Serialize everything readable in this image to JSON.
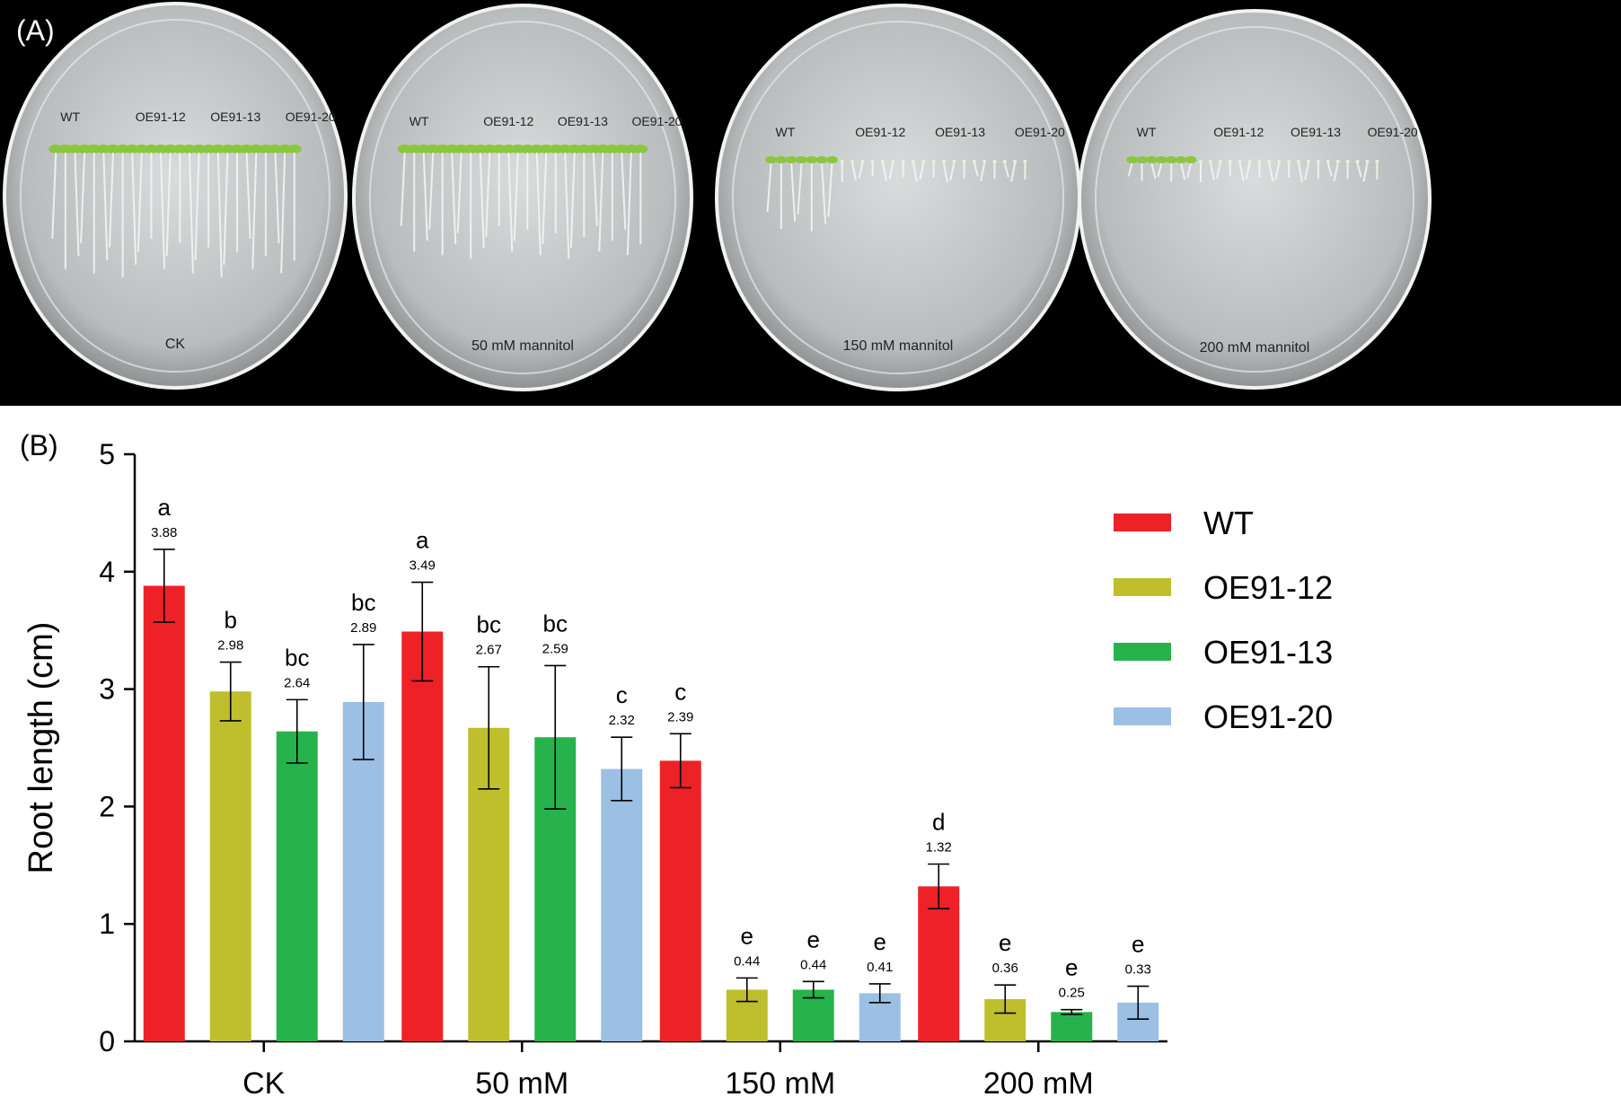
{
  "panel_a": {
    "label": "(A)",
    "plates": [
      {
        "condition": "CK",
        "genotypes": [
          "WT",
          "OE91-12",
          "OE91-13",
          "OE91-20"
        ],
        "root_level": 1.0
      },
      {
        "condition": "50 mM mannitol",
        "genotypes": [
          "WT",
          "OE91-12",
          "OE91-13",
          "OE91-20"
        ],
        "root_level": 0.85
      },
      {
        "condition": "150 mM mannitol",
        "genotypes": [
          "WT",
          "OE91-12",
          "OE91-13",
          "OE91-20"
        ],
        "root_level": 0.45
      },
      {
        "condition": "200 mM mannitol",
        "genotypes": [
          "WT",
          "OE91-12",
          "OE91-13",
          "OE91-20"
        ],
        "root_level": 0.2
      }
    ]
  },
  "chart_data": {
    "label": "(B)",
    "type": "bar",
    "ylabel": "Root length (cm)",
    "xlabel": "",
    "ylim": [
      0,
      5
    ],
    "yticks": [
      0,
      1,
      2,
      3,
      4,
      5
    ],
    "categories": [
      "CK",
      "50 mM",
      "150 mM",
      "200 mM"
    ],
    "legend_position": "right",
    "series": [
      {
        "name": "WT",
        "color": "#ee2127",
        "values": [
          3.88,
          3.49,
          2.39,
          1.32
        ],
        "labels": [
          "3.88",
          "3.49",
          "2.39",
          "1.32"
        ],
        "errors": [
          0.31,
          0.42,
          0.23,
          0.19
        ],
        "letters": [
          "a",
          "a",
          "c",
          "d"
        ]
      },
      {
        "name": "OE91-12",
        "color": "#bfbf2e",
        "values": [
          2.98,
          2.67,
          0.44,
          0.36
        ],
        "labels": [
          "2.98",
          "2.67",
          "0.44",
          "0.36"
        ],
        "errors": [
          0.25,
          0.52,
          0.1,
          0.12
        ],
        "letters": [
          "b",
          "bc",
          "e",
          "e"
        ]
      },
      {
        "name": "OE91-13",
        "color": "#27b34b",
        "values": [
          2.64,
          2.59,
          0.44,
          0.25
        ],
        "labels": [
          "2.64",
          "2.59",
          "0.44",
          "0.25"
        ],
        "errors": [
          0.27,
          0.61,
          0.07,
          0.02
        ],
        "letters": [
          "bc",
          "bc",
          "e",
          "e"
        ]
      },
      {
        "name": "OE91-20",
        "color": "#9cbfe4",
        "values": [
          2.89,
          2.32,
          0.41,
          0.33
        ],
        "labels": [
          "2.89",
          "2.32",
          "0.41",
          "0.33"
        ],
        "errors": [
          0.49,
          0.27,
          0.08,
          0.14
        ],
        "letters": [
          "bc",
          "c",
          "e",
          "e"
        ]
      }
    ]
  }
}
